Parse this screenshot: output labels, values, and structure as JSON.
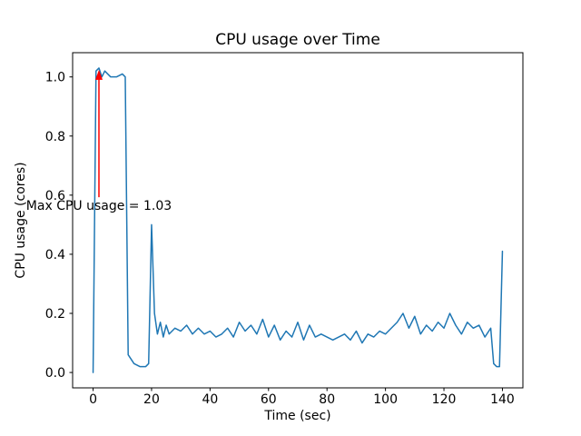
{
  "figure": {
    "background": "#ffffff"
  },
  "chart_data": {
    "type": "line",
    "title": "CPU usage over Time",
    "xlabel": "Time (sec)",
    "ylabel": "CPU usage (cores)",
    "grid": false,
    "legend": "none",
    "line_color": "#1f77b4",
    "line_width": 1.5,
    "xlim": [
      -7,
      147
    ],
    "ylim": [
      -0.052,
      1.082
    ],
    "xticks": [
      0,
      20,
      40,
      60,
      80,
      100,
      120,
      140
    ],
    "yticks": [
      0.0,
      0.2,
      0.4,
      0.6,
      0.8,
      1.0
    ],
    "x": [
      0,
      1,
      2,
      3,
      4,
      5,
      6,
      8,
      10,
      11,
      12,
      14,
      16,
      18,
      19,
      20,
      21,
      22,
      23,
      24,
      25,
      26,
      28,
      30,
      32,
      34,
      36,
      38,
      40,
      42,
      44,
      46,
      48,
      50,
      52,
      54,
      56,
      58,
      60,
      62,
      64,
      66,
      68,
      70,
      72,
      74,
      76,
      78,
      80,
      82,
      84,
      86,
      88,
      90,
      92,
      94,
      96,
      98,
      100,
      102,
      104,
      106,
      108,
      110,
      112,
      114,
      116,
      118,
      120,
      122,
      124,
      126,
      128,
      130,
      132,
      134,
      136,
      137,
      138,
      139,
      140
    ],
    "y": [
      0.0,
      1.02,
      1.03,
      1.0,
      1.02,
      1.01,
      1.0,
      1.0,
      1.01,
      1.0,
      0.06,
      0.03,
      0.02,
      0.02,
      0.03,
      0.5,
      0.2,
      0.13,
      0.17,
      0.12,
      0.16,
      0.13,
      0.15,
      0.14,
      0.16,
      0.13,
      0.15,
      0.13,
      0.14,
      0.12,
      0.13,
      0.15,
      0.12,
      0.17,
      0.14,
      0.16,
      0.13,
      0.18,
      0.12,
      0.16,
      0.11,
      0.14,
      0.12,
      0.17,
      0.11,
      0.16,
      0.12,
      0.13,
      0.12,
      0.11,
      0.12,
      0.13,
      0.11,
      0.14,
      0.1,
      0.13,
      0.12,
      0.14,
      0.13,
      0.15,
      0.17,
      0.2,
      0.15,
      0.19,
      0.13,
      0.16,
      0.14,
      0.17,
      0.15,
      0.2,
      0.16,
      0.13,
      0.17,
      0.15,
      0.16,
      0.12,
      0.15,
      0.03,
      0.02,
      0.02,
      0.41
    ],
    "annotation": {
      "text": "Max CPU usage = 1.03",
      "color": "#ff0000",
      "point_x": 2,
      "point_y": 1.03,
      "text_x": 2,
      "text_y": 0.55
    }
  }
}
